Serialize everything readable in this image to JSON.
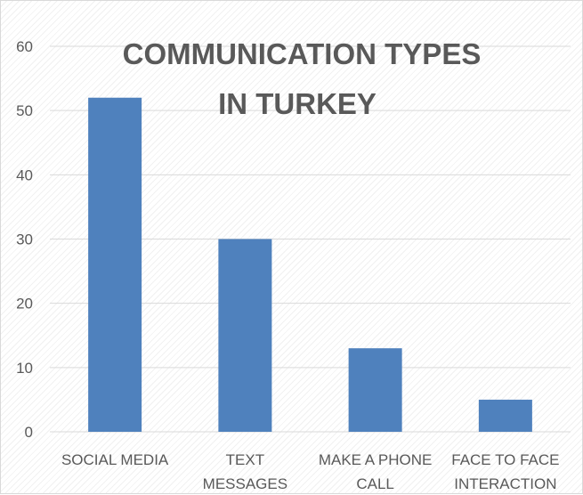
{
  "chart_data": {
    "type": "bar",
    "title_lines": [
      "COMMUNICATION TYPES",
      "IN TURKEY"
    ],
    "categories": [
      [
        "SOCIAL MEDIA"
      ],
      [
        "TEXT",
        "MESSAGES"
      ],
      [
        "MAKE A PHONE",
        "CALL"
      ],
      [
        "FACE TO FACE",
        "INTERACTION"
      ]
    ],
    "values": [
      52,
      30,
      13,
      5
    ],
    "yticks": [
      "0",
      "10",
      "20",
      "30",
      "40",
      "50",
      "60"
    ],
    "ylim": [
      0,
      60
    ],
    "grid": true,
    "legend": "none",
    "bar_color": "#4f81bd",
    "grid_color": "#d9d9d9",
    "text_color": "#595959"
  }
}
